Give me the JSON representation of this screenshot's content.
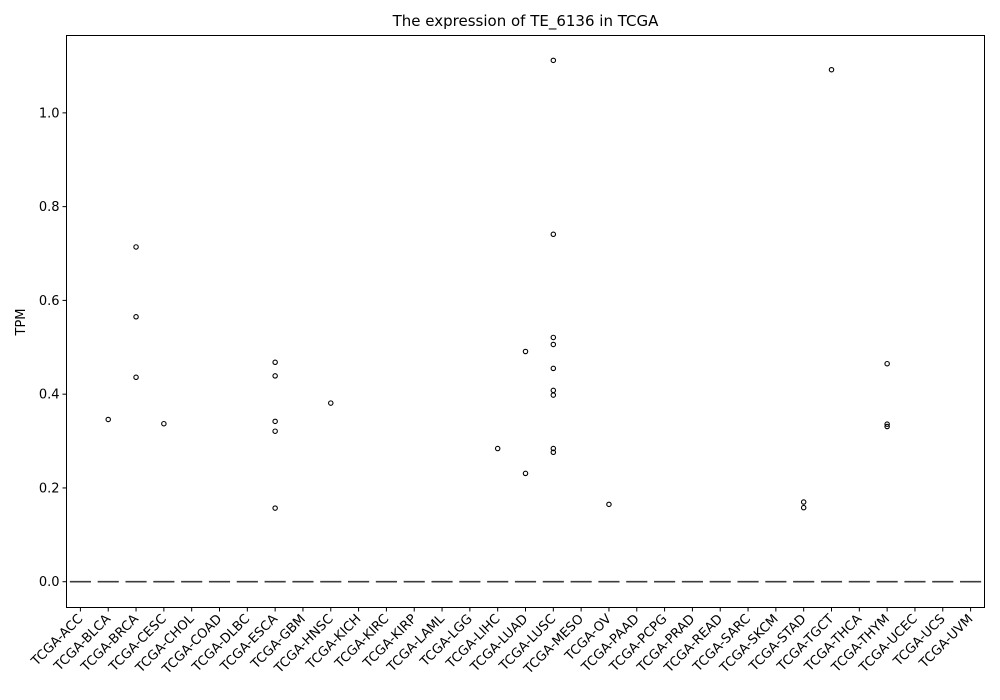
{
  "chart_data": {
    "type": "box",
    "title": "The expression of TE_6136 in TCGA",
    "xlabel": "",
    "ylabel": "TPM",
    "ylim": [
      -0.055,
      1.165
    ],
    "yticks": [
      0.0,
      0.2,
      0.4,
      0.6,
      0.8,
      1.0
    ],
    "ytick_labels": [
      "0.0",
      "0.2",
      "0.4",
      "0.6",
      "0.8",
      "1.0"
    ],
    "grid": false,
    "categories": [
      "TCGA-ACC",
      "TCGA-BLCA",
      "TCGA-BRCA",
      "TCGA-CESC",
      "TCGA-CHOL",
      "TCGA-COAD",
      "TCGA-DLBC",
      "TCGA-ESCA",
      "TCGA-GBM",
      "TCGA-HNSC",
      "TCGA-KICH",
      "TCGA-KIRC",
      "TCGA-KIRP",
      "TCGA-LAML",
      "TCGA-LGG",
      "TCGA-LIHC",
      "TCGA-LUAD",
      "TCGA-LUSC",
      "TCGA-MESO",
      "TCGA-OV",
      "TCGA-PAAD",
      "TCGA-PCPG",
      "TCGA-PRAD",
      "TCGA-READ",
      "TCGA-SARC",
      "TCGA-SKCM",
      "TCGA-STAD",
      "TCGA-TGCT",
      "TCGA-THCA",
      "TCGA-THYM",
      "TCGA-UCEC",
      "TCGA-UCS",
      "TCGA-UVM"
    ],
    "median": [
      0,
      0,
      0,
      0,
      0,
      0,
      0,
      0,
      0,
      0,
      0,
      0,
      0,
      0,
      0,
      0,
      0,
      0,
      0,
      0,
      0,
      0,
      0,
      0,
      0,
      0,
      0,
      0,
      0,
      0,
      0,
      0,
      0
    ],
    "outliers": [
      [],
      [
        0.346
      ],
      [
        0.714,
        0.565,
        0.436
      ],
      [
        0.337
      ],
      [],
      [],
      [],
      [
        0.468,
        0.439,
        0.342,
        0.321,
        0.157
      ],
      [],
      [
        0.381
      ],
      [],
      [],
      [],
      [],
      [],
      [
        0.284
      ],
      [
        0.491,
        0.231
      ],
      [
        1.112,
        0.741,
        0.521,
        0.506,
        0.455,
        0.408,
        0.398,
        0.284,
        0.276
      ],
      [],
      [
        0.165
      ],
      [],
      [],
      [],
      [],
      [],
      [],
      [
        0.17,
        0.158
      ],
      [
        1.092
      ],
      [],
      [
        0.465,
        0.336,
        0.331
      ],
      [],
      [],
      []
    ]
  }
}
